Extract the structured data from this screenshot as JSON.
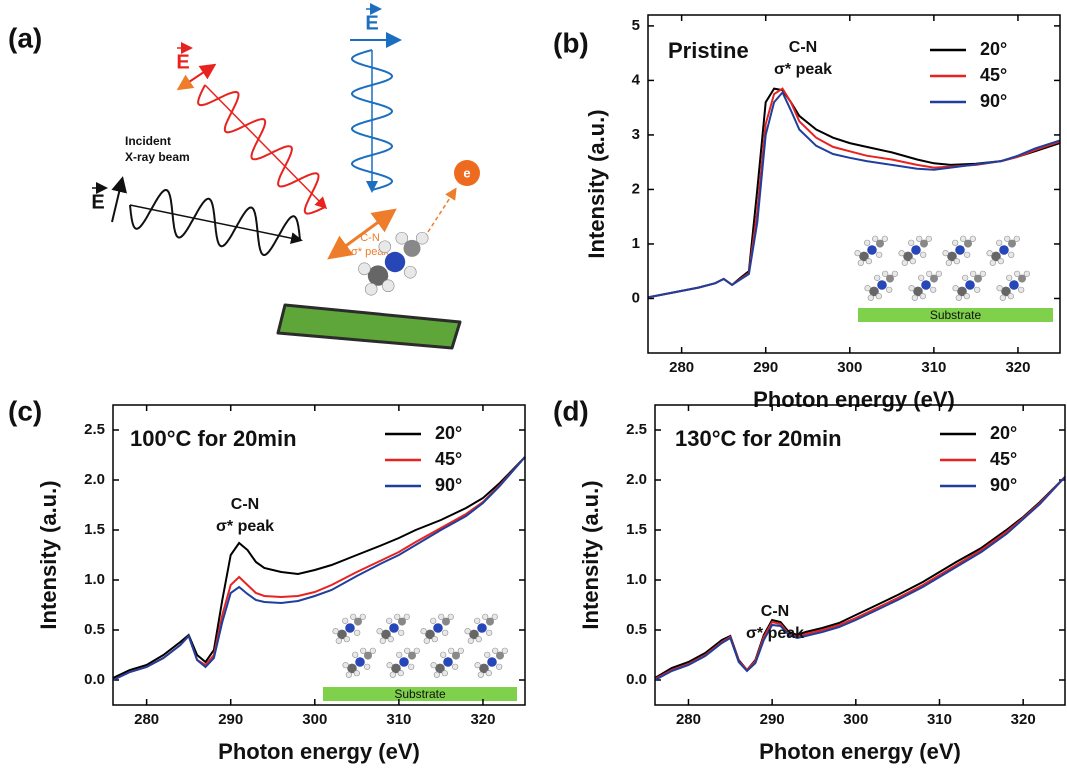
{
  "diagram": {
    "panel_label": "(a)",
    "beams": [
      {
        "label": "E",
        "color": "#e8231f"
      },
      {
        "label": "E",
        "color": "#1c6fc0"
      },
      {
        "label": "E",
        "color": "#111111"
      }
    ],
    "incident_label": [
      "Incident",
      "X-ray beam"
    ],
    "transition_label": [
      "C-N",
      "σ* peak"
    ],
    "electron_label": "e"
  },
  "chart_data": [
    {
      "type": "line",
      "panel_label": "(b)",
      "title": "Pristine",
      "annotation": [
        "C-N",
        "σ* peak"
      ],
      "inset_label": "Substrate",
      "xlabel": "Photon energy (eV)",
      "ylabel": "Intensity (a.u.)",
      "xlim": [
        276,
        325
      ],
      "xticks": [
        280,
        290,
        300,
        310,
        320
      ],
      "ylim": [
        -1,
        5.2
      ],
      "yticks": [
        0,
        1,
        2,
        3,
        4,
        5
      ],
      "x": [
        276,
        278,
        280,
        282,
        284,
        285,
        286,
        287,
        288,
        289,
        290,
        291,
        292,
        293,
        294,
        296,
        298,
        300,
        302,
        305,
        308,
        310,
        312,
        315,
        318,
        320,
        322,
        325
      ],
      "series": [
        {
          "name": "20°",
          "color": "#000000",
          "values": [
            0.02,
            0.08,
            0.14,
            0.2,
            0.28,
            0.36,
            0.25,
            0.38,
            0.5,
            2.0,
            3.6,
            3.85,
            3.82,
            3.6,
            3.35,
            3.1,
            2.95,
            2.85,
            2.78,
            2.68,
            2.55,
            2.48,
            2.45,
            2.47,
            2.52,
            2.6,
            2.7,
            2.85
          ]
        },
        {
          "name": "45°",
          "color": "#e8231f",
          "values": [
            0.02,
            0.08,
            0.14,
            0.2,
            0.28,
            0.36,
            0.25,
            0.36,
            0.47,
            1.6,
            3.2,
            3.75,
            3.85,
            3.6,
            3.25,
            2.95,
            2.78,
            2.7,
            2.62,
            2.55,
            2.45,
            2.4,
            2.42,
            2.45,
            2.52,
            2.6,
            2.72,
            2.88
          ]
        },
        {
          "name": "90°",
          "color": "#1f3f9e",
          "values": [
            0.02,
            0.08,
            0.14,
            0.2,
            0.28,
            0.36,
            0.25,
            0.35,
            0.45,
            1.4,
            3.0,
            3.6,
            3.78,
            3.45,
            3.1,
            2.8,
            2.65,
            2.58,
            2.52,
            2.45,
            2.38,
            2.36,
            2.4,
            2.46,
            2.52,
            2.62,
            2.75,
            2.9
          ]
        }
      ]
    },
    {
      "type": "line",
      "panel_label": "(c)",
      "title": "100°C for 20min",
      "annotation": [
        "C-N",
        "σ* peak"
      ],
      "inset_label": "Substrate",
      "xlabel": "Photon energy (eV)",
      "ylabel": "Intensity (a.u.)",
      "xlim": [
        276,
        325
      ],
      "xticks": [
        280,
        290,
        300,
        310,
        320
      ],
      "ylim": [
        -0.25,
        2.75
      ],
      "yticks": [
        {
          "value": 0,
          "label": "0.0"
        },
        0.5,
        {
          "value": 1,
          "label": "1.0"
        },
        1.5,
        {
          "value": 2,
          "label": "2.0"
        },
        2.5
      ],
      "x": [
        276,
        278,
        280,
        282,
        284,
        285,
        286,
        287,
        288,
        289,
        290,
        291,
        292,
        293,
        294,
        296,
        298,
        300,
        302,
        305,
        308,
        310,
        312,
        315,
        318,
        320,
        322,
        325
      ],
      "series": [
        {
          "name": "20°",
          "color": "#000000",
          "values": [
            0.02,
            0.1,
            0.15,
            0.25,
            0.38,
            0.45,
            0.25,
            0.18,
            0.3,
            0.8,
            1.25,
            1.37,
            1.3,
            1.18,
            1.12,
            1.08,
            1.06,
            1.1,
            1.15,
            1.25,
            1.35,
            1.42,
            1.5,
            1.6,
            1.72,
            1.82,
            1.97,
            2.23
          ]
        },
        {
          "name": "45°",
          "color": "#e8231f",
          "values": [
            0.0,
            0.08,
            0.13,
            0.22,
            0.35,
            0.44,
            0.2,
            0.15,
            0.25,
            0.65,
            0.95,
            1.03,
            0.95,
            0.87,
            0.84,
            0.83,
            0.84,
            0.88,
            0.95,
            1.08,
            1.2,
            1.28,
            1.38,
            1.52,
            1.66,
            1.78,
            1.95,
            2.23
          ]
        },
        {
          "name": "90°",
          "color": "#1f3f9e",
          "values": [
            0.0,
            0.08,
            0.13,
            0.22,
            0.35,
            0.44,
            0.2,
            0.13,
            0.22,
            0.58,
            0.87,
            0.93,
            0.86,
            0.8,
            0.78,
            0.77,
            0.79,
            0.84,
            0.9,
            1.04,
            1.17,
            1.25,
            1.35,
            1.5,
            1.64,
            1.77,
            1.94,
            2.23
          ]
        }
      ]
    },
    {
      "type": "line",
      "panel_label": "(d)",
      "title": "130°C for 20min",
      "annotation": [
        "C-N",
        "σ* peak"
      ],
      "xlabel": "Photon energy (eV)",
      "ylabel": "Intensity (a.u.)",
      "xlim": [
        276,
        325
      ],
      "xticks": [
        280,
        290,
        300,
        310,
        320
      ],
      "ylim": [
        -0.25,
        2.75
      ],
      "yticks": [
        {
          "value": 0,
          "label": "0.0"
        },
        0.5,
        {
          "value": 1,
          "label": "1.0"
        },
        1.5,
        {
          "value": 2,
          "label": "2.0"
        },
        2.5
      ],
      "x": [
        276,
        278,
        280,
        282,
        284,
        285,
        286,
        287,
        288,
        289,
        290,
        291,
        292,
        293,
        294,
        296,
        298,
        300,
        302,
        305,
        308,
        310,
        312,
        315,
        318,
        320,
        322,
        325
      ],
      "series": [
        {
          "name": "20°",
          "color": "#000000",
          "values": [
            0.02,
            0.12,
            0.18,
            0.27,
            0.4,
            0.44,
            0.2,
            0.1,
            0.2,
            0.45,
            0.6,
            0.58,
            0.48,
            0.45,
            0.48,
            0.52,
            0.57,
            0.65,
            0.73,
            0.85,
            0.98,
            1.08,
            1.18,
            1.32,
            1.5,
            1.63,
            1.78,
            2.03
          ]
        },
        {
          "name": "45°",
          "color": "#e8231f",
          "values": [
            0.01,
            0.1,
            0.16,
            0.25,
            0.38,
            0.43,
            0.19,
            0.1,
            0.19,
            0.43,
            0.58,
            0.56,
            0.46,
            0.43,
            0.46,
            0.5,
            0.55,
            0.62,
            0.7,
            0.82,
            0.95,
            1.05,
            1.15,
            1.3,
            1.48,
            1.62,
            1.77,
            2.03
          ]
        },
        {
          "name": "90°",
          "color": "#1f3f9e",
          "values": [
            0.0,
            0.09,
            0.15,
            0.24,
            0.37,
            0.42,
            0.18,
            0.09,
            0.17,
            0.4,
            0.55,
            0.54,
            0.45,
            0.42,
            0.44,
            0.48,
            0.53,
            0.6,
            0.68,
            0.8,
            0.93,
            1.03,
            1.13,
            1.28,
            1.46,
            1.61,
            1.76,
            2.03
          ]
        }
      ]
    }
  ]
}
